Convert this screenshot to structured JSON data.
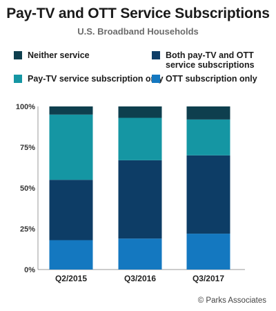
{
  "title": "Pay-TV and OTT Service Subscriptions",
  "subtitle": "U.S. Broadband Households",
  "legend": [
    {
      "label": "Neither service",
      "color": "#0e3f4e"
    },
    {
      "label": "Both pay-TV and OTT\nservice subscriptions",
      "color": "#0d3d66"
    },
    {
      "label": "Pay-TV service subscription only",
      "color": "#1596a3"
    },
    {
      "label": "OTT subscription only",
      "color": "#1478c0"
    }
  ],
  "credit": "© Parks Associates",
  "chart_data": {
    "type": "bar",
    "stacked": true,
    "categories": [
      "Q2/2015",
      "Q3/2016",
      "Q3/2017"
    ],
    "series": [
      {
        "name": "OTT subscription only",
        "values": [
          18,
          19,
          22
        ],
        "color": "#1478c0"
      },
      {
        "name": "Both pay-TV and OTT service subscriptions",
        "values": [
          37,
          48,
          48
        ],
        "color": "#0d3d66"
      },
      {
        "name": "Pay-TV service subscription only",
        "values": [
          40,
          26,
          22
        ],
        "color": "#1596a3"
      },
      {
        "name": "Neither service",
        "values": [
          5,
          7,
          8
        ],
        "color": "#0e3f4e"
      }
    ],
    "yticks": [
      "0%",
      "25%",
      "50%",
      "75%",
      "100%"
    ],
    "ylim": [
      0,
      100
    ],
    "grid": false,
    "legend_position": "top"
  }
}
